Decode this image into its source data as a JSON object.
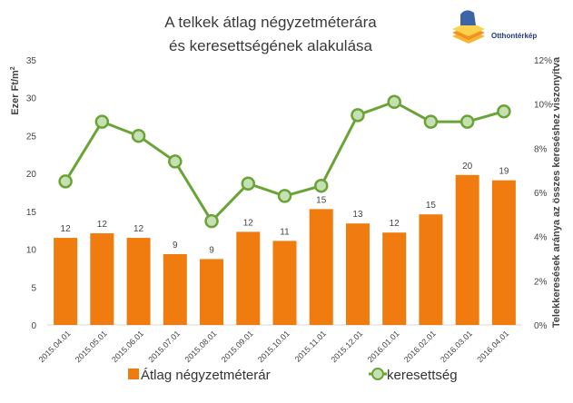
{
  "chart_data": {
    "type": "bar",
    "title_line1": "A telkek átlag négyzetméterára",
    "title_line2": "és keresettségének alakulása",
    "logo_text": "Otthontérkép",
    "categories": [
      "2015.04.01",
      "2015.05.01",
      "2015.06.01",
      "2015.07.01",
      "2015.08.01",
      "2015.09.01",
      "2015.10.01",
      "2015.11.01",
      "2015.12.01",
      "2016.01.01",
      "2016.02.01",
      "2016.03.01",
      "2016.04.01"
    ],
    "ylabel": "Ezer Ft/m",
    "ylabel_sup": "2",
    "ylim": [
      0,
      35
    ],
    "yticks": [
      "0",
      "5",
      "10",
      "15",
      "20",
      "25",
      "30",
      "35"
    ],
    "y2label": "Telekkeresések aránya az összes kereséshez viszonyítva",
    "y2lim": [
      0,
      12
    ],
    "y2ticks": [
      "0%",
      "2%",
      "4%",
      "6%",
      "8%",
      "10%",
      "12%"
    ],
    "grid": false,
    "legend_position": "bottom",
    "series": [
      {
        "name": "Átlag négyzetméterár",
        "type": "bar",
        "axis": "left",
        "color": "#F07B0F",
        "values": [
          11.5,
          12.1,
          11.5,
          9.35,
          8.7,
          12.3,
          11.1,
          15.3,
          13.4,
          12.2,
          14.6,
          19.8,
          19.1
        ],
        "labels": [
          "12",
          "12",
          "12",
          "9",
          "9",
          "12",
          "11",
          "15",
          "13",
          "12",
          "15",
          "20",
          "19"
        ]
      },
      {
        "name": "keresettség",
        "type": "line",
        "axis": "right",
        "color": "#6AA437",
        "marker_fill": "#C6E0B4",
        "values": [
          6.5,
          9.2,
          8.56,
          7.4,
          4.7,
          6.4,
          5.84,
          6.3,
          9.5,
          10.1,
          9.2,
          9.2,
          9.67
        ]
      }
    ]
  }
}
